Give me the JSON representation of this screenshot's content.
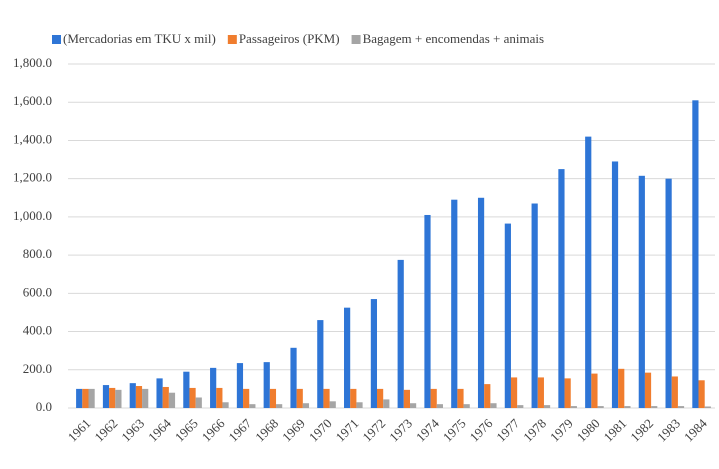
{
  "chart_data": {
    "type": "bar",
    "categories": [
      "1961",
      "1962",
      "1963",
      "1964",
      "1965",
      "1966",
      "1967",
      "1968",
      "1969",
      "1970",
      "1971",
      "1972",
      "1973",
      "1974",
      "1975",
      "1976",
      "1977",
      "1978",
      "1979",
      "1980",
      "1981",
      "1982",
      "1983",
      "1984"
    ],
    "series": [
      {
        "name": "(Mercadorias em TKU x mil)",
        "color": "#2e75d6",
        "values": [
          100,
          120,
          130,
          155,
          190,
          210,
          235,
          240,
          315,
          460,
          525,
          570,
          775,
          1010,
          1090,
          1100,
          965,
          1070,
          1250,
          1420,
          1290,
          1215,
          1200,
          1610
        ]
      },
      {
        "name": "Passageiros (PKM)",
        "color": "#f07d2e",
        "values": [
          100,
          105,
          115,
          110,
          105,
          105,
          100,
          100,
          100,
          100,
          100,
          100,
          95,
          100,
          100,
          125,
          160,
          160,
          155,
          180,
          205,
          185,
          165,
          145
        ]
      },
      {
        "name": "Bagagem + encomendas + animais",
        "color": "#a5a5a5",
        "values": [
          100,
          95,
          100,
          80,
          55,
          30,
          20,
          20,
          25,
          35,
          30,
          45,
          25,
          20,
          20,
          25,
          15,
          15,
          10,
          10,
          10,
          10,
          10,
          8
        ]
      }
    ],
    "ylim": [
      0,
      1800
    ],
    "yticks": [
      {
        "value": 0,
        "label": "0.0"
      },
      {
        "value": 200,
        "label": "200.0"
      },
      {
        "value": 400,
        "label": "400.0"
      },
      {
        "value": 600,
        "label": "600.0"
      },
      {
        "value": 800,
        "label": "800.0"
      },
      {
        "value": 1000,
        "label": "1,000.0"
      },
      {
        "value": 1200,
        "label": "1,200.0"
      },
      {
        "value": 1400,
        "label": "1,400.0"
      },
      {
        "value": 1600,
        "label": "1,600.0"
      },
      {
        "value": 1800,
        "label": "1,800.0"
      }
    ],
    "grid": true,
    "legend": "top"
  }
}
